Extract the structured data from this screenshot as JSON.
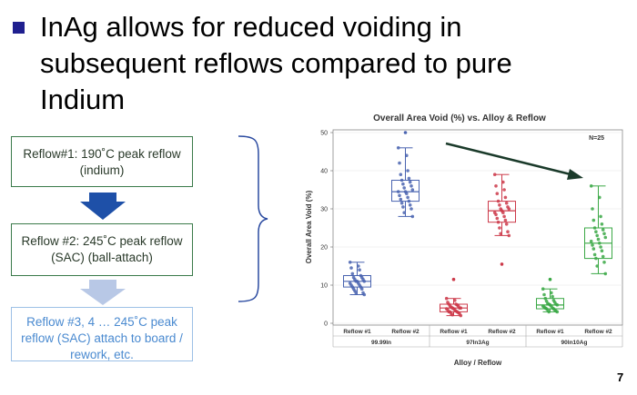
{
  "slide": {
    "title": "InAg allows for reduced voiding in subsequent reflows compared to pure Indium",
    "page_number": "7"
  },
  "steps": [
    {
      "label": "Reflow#1: 190˚C peak reflow (indium)"
    },
    {
      "label": "Reflow #2: 245˚C peak reflow (SAC) (ball-attach)"
    },
    {
      "label": "Reflow #3, 4 … 245˚C peak reflow (SAC) attach to board / rework, etc."
    }
  ],
  "colors": {
    "blue": "#4a64b0",
    "red": "#cc3a4a",
    "green": "#3aa845",
    "arrow_dark": "#1e50a8",
    "arrow_light": "#b8c8e6",
    "trend_arrow": "#1a3a2a"
  },
  "chart_data": {
    "type": "box",
    "title": "Overall Area Void (%) vs. Alloy & Reflow",
    "annotation": "N=25",
    "ylabel": "Overall Area Void (%)",
    "xlabel": "Alloy / Reflow",
    "ylim": [
      0,
      50
    ],
    "yticks": [
      0,
      10,
      20,
      30,
      40,
      50
    ],
    "groups": [
      "99.99In",
      "97In3Ag",
      "90In10Ag"
    ],
    "categories": [
      "Reflow #1",
      "Reflow #2",
      "Reflow #1",
      "Reflow #2",
      "Reflow #1",
      "Reflow #2"
    ],
    "boxes": [
      {
        "group": "99.99In",
        "category": "Reflow #1",
        "color": "blue",
        "min": 7.5,
        "q1": 9.5,
        "median": 11,
        "q3": 12.5,
        "max": 16
      },
      {
        "group": "99.99In",
        "category": "Reflow #2",
        "color": "blue",
        "min": 28,
        "q1": 32,
        "median": 34.5,
        "q3": 37.5,
        "max": 46
      },
      {
        "group": "97In3Ag",
        "category": "Reflow #1",
        "color": "red",
        "min": 2,
        "q1": 3,
        "median": 4,
        "q3": 5,
        "max": 6.5
      },
      {
        "group": "97In3Ag",
        "category": "Reflow #2",
        "color": "red",
        "min": 23,
        "q1": 26.5,
        "median": 29.5,
        "q3": 32,
        "max": 39
      },
      {
        "group": "90In10Ag",
        "category": "Reflow #1",
        "color": "green",
        "min": 3,
        "q1": 3.8,
        "median": 4.8,
        "q3": 6.5,
        "max": 9
      },
      {
        "group": "90In10Ag",
        "category": "Reflow #2",
        "color": "green",
        "min": 13,
        "q1": 17,
        "median": 21,
        "q3": 25,
        "max": 36
      }
    ],
    "outliers": [
      {
        "box": 1,
        "value": 50
      },
      {
        "box": 2,
        "value": 11.5
      },
      {
        "box": 3,
        "value": 15.5
      },
      {
        "box": 4,
        "value": 11.5
      }
    ],
    "points": [
      [
        16,
        15,
        14.5,
        14,
        13,
        12.5,
        12,
        12,
        11.5,
        11.5,
        11,
        11,
        11,
        10.5,
        10.5,
        10,
        10,
        9.5,
        9.5,
        9,
        9,
        8.5,
        8,
        8,
        7.5
      ],
      [
        46,
        44,
        42,
        40,
        39,
        38,
        37.5,
        37,
        36.5,
        36,
        35.5,
        35,
        34.5,
        34.5,
        34,
        33.5,
        33,
        32.5,
        32,
        31.5,
        31,
        30.5,
        30,
        29,
        28
      ],
      [
        6.5,
        6,
        5.5,
        5,
        5,
        4.8,
        4.5,
        4.5,
        4.2,
        4,
        4,
        4,
        3.8,
        3.8,
        3.5,
        3.5,
        3.2,
        3,
        3,
        3,
        2.8,
        2.5,
        2.5,
        2.2,
        2
      ],
      [
        39,
        37,
        36,
        35,
        34,
        33,
        32,
        31.5,
        31,
        30.5,
        30,
        30,
        29.5,
        29,
        29,
        28.5,
        28,
        27.5,
        27,
        26.5,
        26,
        25,
        24,
        23.5,
        23
      ],
      [
        9,
        8,
        7.5,
        7,
        6.5,
        6,
        5.8,
        5.5,
        5.2,
        5,
        5,
        4.8,
        4.8,
        4.5,
        4.5,
        4.2,
        4,
        4,
        3.8,
        3.8,
        3.5,
        3.5,
        3.2,
        3,
        3
      ],
      [
        36,
        33,
        30,
        28,
        27,
        26,
        25,
        24.5,
        24,
        23.5,
        23,
        22.5,
        22,
        21.5,
        21,
        20.5,
        20,
        19.5,
        19,
        18,
        17.5,
        17,
        16,
        15,
        13
      ]
    ]
  }
}
